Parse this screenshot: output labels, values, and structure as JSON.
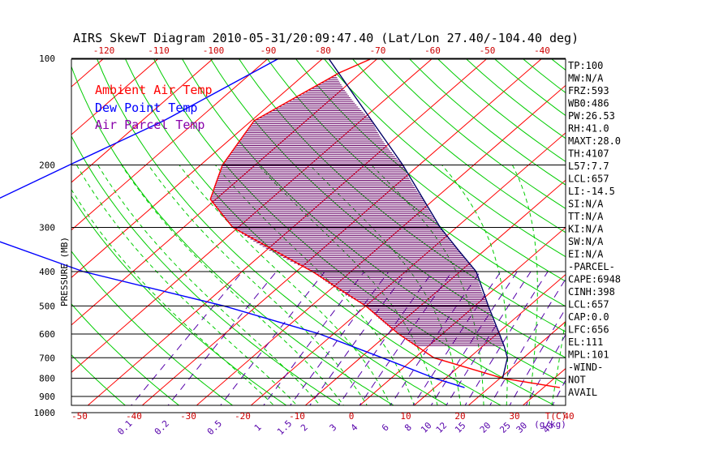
{
  "chart_data": {
    "type": "line",
    "title": "AIRS SkewT Diagram 2010-05-31/20:09:47.40 (Lat/Lon 27.40/-104.40 deg)",
    "ylabel": "PRESSURE (MB)",
    "y_scale": "log",
    "ylim": [
      1050,
      100
    ],
    "xlim": [
      -50,
      40
    ],
    "pressure_ticks": [
      100,
      200,
      300,
      400,
      500,
      600,
      700,
      800,
      900,
      1000
    ],
    "bottom_temp_ticks": [
      -50,
      -40,
      -30,
      -20,
      -10,
      0,
      10,
      20,
      30,
      40
    ],
    "bottom_temp_unit": "T(C)",
    "top_temp_ticks": [
      -120,
      -110,
      -100,
      -90,
      -80,
      -70,
      -60,
      -50,
      -40
    ],
    "mixing_ratio_ticks": [
      "0.1",
      "0.2",
      "0.5",
      "1",
      "1.5",
      "2",
      "3",
      "4",
      "6",
      "8",
      "10",
      "12",
      "15",
      "20",
      "25",
      "30",
      "40"
    ],
    "mixing_ratio_unit": "(g/kg)",
    "legend": [
      "Ambient Air Temp",
      "Dew Point Temp",
      "Air Parcel Temp"
    ],
    "series": [
      {
        "name": "Ambient Air Temp",
        "color": "#ff0000",
        "points": [
          [
            100,
            -71
          ],
          [
            110,
            -74
          ],
          [
            150,
            -79.5
          ],
          [
            200,
            -76
          ],
          [
            250,
            -71
          ],
          [
            300,
            -61
          ],
          [
            400,
            -37
          ],
          [
            500,
            -20
          ],
          [
            600,
            -8
          ],
          [
            700,
            3.5
          ],
          [
            800,
            20.5
          ],
          [
            850,
            33
          ]
        ]
      },
      {
        "name": "Dew Point Temp",
        "color": "#0000ff",
        "points": [
          [
            100,
            -88
          ],
          [
            150,
            -96
          ],
          [
            200,
            -104
          ],
          [
            250,
            -110
          ],
          [
            300,
            -111
          ],
          [
            400,
            -79
          ],
          [
            500,
            -46
          ],
          [
            600,
            -22.5
          ],
          [
            700,
            -6
          ],
          [
            800,
            8
          ],
          [
            850,
            15.5
          ]
        ]
      },
      {
        "name": "Air Parcel Temp",
        "color": "#000066",
        "points": [
          [
            100,
            -79
          ],
          [
            150,
            -58
          ],
          [
            200,
            -43
          ],
          [
            250,
            -32
          ],
          [
            300,
            -23
          ],
          [
            350,
            -14.5
          ],
          [
            400,
            -7
          ],
          [
            500,
            2.5
          ],
          [
            600,
            10.5
          ],
          [
            650,
            14
          ],
          [
            700,
            17
          ],
          [
            800,
            20.5
          ]
        ]
      }
    ],
    "indices": [
      "TP:100",
      "MW:N/A",
      "FRZ:593",
      "WB0:486",
      "PW:26.53",
      "RH:41.0",
      "MAXT:28.0",
      "TH:4107",
      "L57:7.7",
      "LCL:657",
      "LI:-14.5",
      "SI:N/A",
      "TT:N/A",
      "KI:N/A",
      "SW:N/A",
      "EI:N/A",
      "-PARCEL-",
      "CAPE:6948",
      "CINH:398",
      "LCL:657",
      "CAP:0.0",
      "LFC:656",
      "EL:111",
      "MPL:101",
      "-WIND-",
      "NOT",
      "AVAIL"
    ],
    "colors": {
      "isotherm": "#ff0000",
      "dry_adiabat": "#00cc00",
      "moist_adiabat": "#00cc00",
      "mixing_ratio": "#5500aa",
      "cape_hatch": "#660066"
    }
  }
}
